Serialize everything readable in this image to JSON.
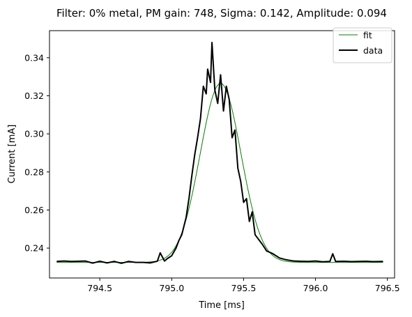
{
  "chart_data": {
    "type": "line",
    "title": "Filter: 0% metal, PM gain: 748, Sigma: 0.142, Amplitude: 0.094",
    "xlabel": "Time [ms]",
    "ylabel": "Current [mA]",
    "xlim": [
      794.15,
      796.55
    ],
    "ylim": [
      0.2243,
      0.3542
    ],
    "xticks": [
      794.5,
      795.0,
      795.5,
      796.0,
      796.5
    ],
    "xtick_labels": [
      "794.5",
      "795.0",
      "795.5",
      "796.0",
      "796.5"
    ],
    "yticks": [
      0.24,
      0.26,
      0.28,
      0.3,
      0.32,
      0.34
    ],
    "ytick_labels": [
      "0.24",
      "0.26",
      "0.28",
      "0.30",
      "0.32",
      "0.34"
    ],
    "grid": false,
    "legend": {
      "position": "top-right",
      "entries": [
        "fit",
        "data"
      ]
    },
    "series": [
      {
        "name": "fit",
        "color": "#008000",
        "model": "gaussian",
        "mu": 795.34,
        "sigma": 0.142,
        "amplitude": 0.094,
        "baseline": 0.2325,
        "x_range": [
          794.2,
          796.47
        ]
      },
      {
        "name": "data",
        "color": "#000000",
        "x": [
          794.2,
          794.25,
          794.3,
          794.35,
          794.4,
          794.45,
          794.5,
          794.55,
          794.6,
          794.65,
          794.7,
          794.75,
          794.8,
          794.85,
          794.9,
          794.92,
          794.95,
          794.97,
          795.0,
          795.03,
          795.05,
          795.07,
          795.1,
          795.12,
          795.14,
          795.16,
          795.18,
          795.2,
          795.22,
          795.24,
          795.25,
          795.27,
          795.28,
          795.3,
          795.32,
          795.34,
          795.36,
          795.38,
          795.4,
          795.42,
          795.44,
          795.46,
          795.48,
          795.5,
          795.52,
          795.54,
          795.56,
          795.58,
          795.6,
          795.63,
          795.66,
          795.7,
          795.75,
          795.8,
          795.85,
          795.9,
          795.95,
          796.0,
          796.05,
          796.1,
          796.12,
          796.14,
          796.2,
          796.25,
          796.3,
          796.35,
          796.4,
          796.47
        ],
        "y": [
          0.233,
          0.2332,
          0.233,
          0.2331,
          0.2332,
          0.2321,
          0.2331,
          0.2322,
          0.233,
          0.232,
          0.233,
          0.2325,
          0.2325,
          0.2322,
          0.2331,
          0.2375,
          0.2332,
          0.2345,
          0.236,
          0.24,
          0.244,
          0.247,
          0.256,
          0.266,
          0.278,
          0.289,
          0.298,
          0.308,
          0.325,
          0.321,
          0.334,
          0.327,
          0.348,
          0.323,
          0.316,
          0.331,
          0.312,
          0.325,
          0.318,
          0.298,
          0.302,
          0.282,
          0.275,
          0.264,
          0.266,
          0.254,
          0.259,
          0.247,
          0.245,
          0.242,
          0.2385,
          0.2372,
          0.2348,
          0.2338,
          0.2332,
          0.2331,
          0.233,
          0.2332,
          0.2328,
          0.233,
          0.237,
          0.233,
          0.2331,
          0.2329,
          0.233,
          0.2331,
          0.2329,
          0.233
        ]
      }
    ]
  }
}
